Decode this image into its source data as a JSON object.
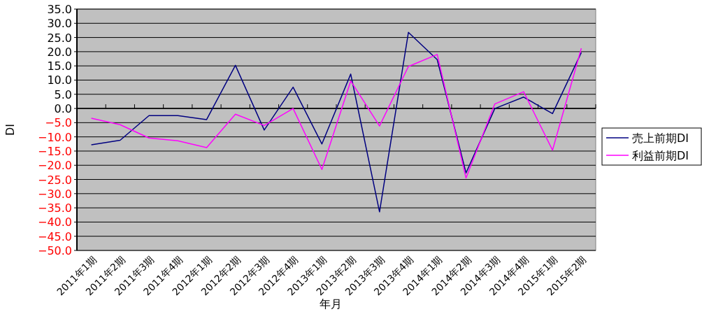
{
  "chart_data": {
    "type": "line",
    "xlabel": "年月",
    "ylabel": "DI",
    "categories": [
      "2011年1期",
      "2011年2期",
      "2011年3期",
      "2011年4期",
      "2012年1期",
      "2012年2期",
      "2012年3期",
      "2012年4期",
      "2013年1期",
      "2013年2期",
      "2013年3期",
      "2013年4期",
      "2014年1期",
      "2014年2期",
      "2014年3期",
      "2014年4期",
      "2015年1期",
      "2015年2期"
    ],
    "series": [
      {
        "name": "売上前期DI",
        "color": "#000080",
        "values": [
          -12.8,
          -11.2,
          -2.5,
          -2.5,
          -3.9,
          15.2,
          -7.6,
          7.5,
          -12.5,
          12.1,
          -36.4,
          26.8,
          17.2,
          -22.7,
          0,
          4.0,
          -1.8,
          19.7
        ]
      },
      {
        "name": "利益前期DI",
        "color": "#ff00ff",
        "values": [
          -3.4,
          -5.7,
          -10.4,
          -11.4,
          -13.8,
          -2.0,
          -6.0,
          0,
          -21.5,
          9.7,
          -6.2,
          14.8,
          19.0,
          -24.5,
          1.6,
          5.9,
          -14.7,
          21.2
        ]
      }
    ],
    "ylim": [
      -50,
      35
    ],
    "yticks": [
      {
        "value": 35,
        "label": "35.0"
      },
      {
        "value": 30,
        "label": "30.0"
      },
      {
        "value": 25,
        "label": "25.0"
      },
      {
        "value": 20,
        "label": "20.0"
      },
      {
        "value": 15,
        "label": "15.0"
      },
      {
        "value": 10,
        "label": "10.0"
      },
      {
        "value": 5,
        "label": "5.0"
      },
      {
        "value": 0,
        "label": "0.0"
      },
      {
        "value": -5,
        "label": "−5.0"
      },
      {
        "value": -10,
        "label": "−10.0"
      },
      {
        "value": -15,
        "label": "−15.0"
      },
      {
        "value": -20,
        "label": "−20.0"
      },
      {
        "value": -25,
        "label": "−25.0"
      },
      {
        "value": -30,
        "label": "−30.0"
      },
      {
        "value": -35,
        "label": "−35.0"
      },
      {
        "value": -40,
        "label": "−40.0"
      },
      {
        "value": -45,
        "label": "−45.0"
      },
      {
        "value": -50,
        "label": "−50.0"
      }
    ],
    "grid": "y",
    "legend": "right",
    "marker": "none",
    "line_style": "solid"
  }
}
